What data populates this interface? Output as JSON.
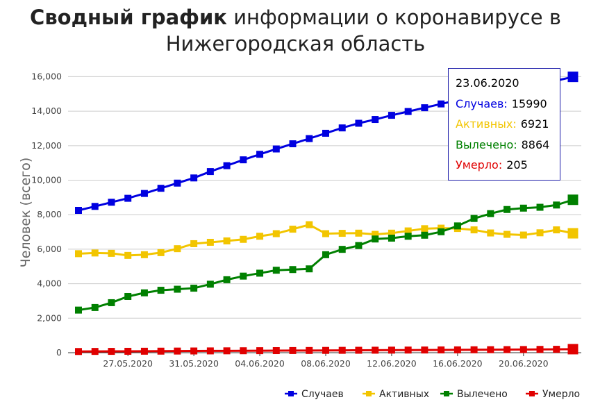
{
  "title": {
    "bold": "Сводный график",
    "rest": "информации о коронавирусе в Нижегородская область"
  },
  "chart_data": {
    "type": "line",
    "ylabel": "Человек (всего)",
    "ylim": [
      0,
      16500
    ],
    "yticks": [
      0,
      2000,
      4000,
      6000,
      8000,
      10000,
      12000,
      14000,
      16000
    ],
    "ytick_labels": [
      "0",
      "2,000",
      "4,000",
      "6,000",
      "8,000",
      "10,000",
      "12,000",
      "14,000",
      "16,000"
    ],
    "x": [
      "24.05.2020",
      "25.05.2020",
      "26.05.2020",
      "27.05.2020",
      "28.05.2020",
      "29.05.2020",
      "30.05.2020",
      "31.05.2020",
      "01.06.2020",
      "02.06.2020",
      "03.06.2020",
      "04.06.2020",
      "05.06.2020",
      "06.06.2020",
      "07.06.2020",
      "08.06.2020",
      "09.06.2020",
      "10.06.2020",
      "11.06.2020",
      "12.06.2020",
      "13.06.2020",
      "14.06.2020",
      "15.06.2020",
      "16.06.2020",
      "17.06.2020",
      "18.06.2020",
      "19.06.2020",
      "20.06.2020",
      "21.06.2020",
      "22.06.2020",
      "23.06.2020"
    ],
    "xtick_labels": [
      "27.05.2020",
      "31.05.2020",
      "04.06.2020",
      "08.06.2020",
      "12.06.2020",
      "16.06.2020",
      "20.06.2020"
    ],
    "grid": true,
    "legend_position": "bottom-right",
    "series": [
      {
        "name": "Случаев",
        "color": "#0000e0",
        "values": [
          8250,
          8480,
          8720,
          8950,
          9230,
          9530,
          9830,
          10130,
          10500,
          10840,
          11180,
          11500,
          11810,
          12110,
          12410,
          12720,
          13030,
          13300,
          13520,
          13760,
          13980,
          14200,
          14420,
          14630,
          14840,
          15040,
          15250,
          15440,
          15580,
          15770,
          15990
        ]
      },
      {
        "name": "Активных",
        "color": "#f2c500",
        "values": [
          5740,
          5780,
          5760,
          5640,
          5680,
          5800,
          6030,
          6320,
          6400,
          6480,
          6570,
          6750,
          6900,
          7160,
          7420,
          6900,
          6920,
          6930,
          6860,
          6930,
          7060,
          7190,
          7220,
          7200,
          7120,
          6940,
          6860,
          6820,
          6950,
          7120,
          6921
        ]
      },
      {
        "name": "Вылечено",
        "color": "#008000",
        "values": [
          2470,
          2620,
          2900,
          3260,
          3470,
          3620,
          3680,
          3740,
          3970,
          4230,
          4440,
          4610,
          4780,
          4820,
          4860,
          5680,
          5990,
          6210,
          6590,
          6640,
          6750,
          6810,
          7010,
          7350,
          7780,
          8060,
          8300,
          8380,
          8430,
          8560,
          8864
        ]
      },
      {
        "name": "Умерло",
        "color": "#e00000",
        "values": [
          70,
          75,
          78,
          82,
          86,
          90,
          95,
          100,
          104,
          108,
          112,
          116,
          120,
          124,
          128,
          133,
          137,
          141,
          145,
          149,
          153,
          157,
          161,
          165,
          170,
          175,
          180,
          185,
          192,
          198,
          205
        ]
      }
    ]
  },
  "tooltip": {
    "date": "23.06.2020",
    "rows": [
      {
        "label": "Случаев:",
        "value": "15990",
        "color": "#0000e0"
      },
      {
        "label": "Активных:",
        "value": "6921",
        "color": "#f2c500"
      },
      {
        "label": "Вылечено:",
        "value": "8864",
        "color": "#008000"
      },
      {
        "label": "Умерло:",
        "value": "205",
        "color": "#e00000"
      }
    ]
  }
}
